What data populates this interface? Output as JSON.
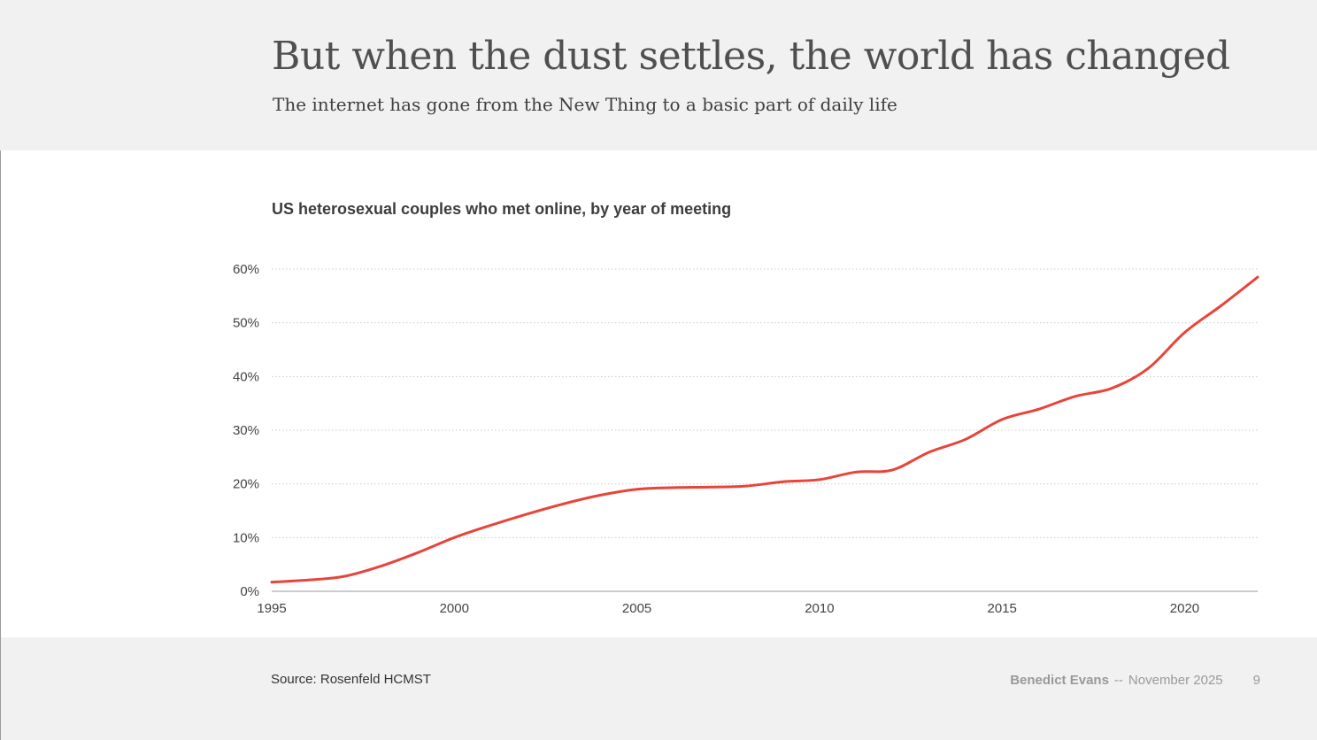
{
  "slide": {
    "title": "But when the dust settles, the world has changed",
    "subtitle": "The internet has gone from the New Thing to a basic part of daily life"
  },
  "footer": {
    "source": "Source: Rosenfeld HCMST",
    "author": "Benedict Evans",
    "separator": "--",
    "date": "November 2025",
    "page_number": "9"
  },
  "colors": {
    "line": "#e8443a",
    "grid": "#c9c9c9",
    "axis": "#9a9a9a",
    "text": "#444444"
  },
  "chart_data": {
    "type": "line",
    "title": "US heterosexual couples who met online, by year of meeting",
    "xlabel": "",
    "ylabel": "",
    "xlim": [
      1995,
      2022
    ],
    "ylim": [
      0,
      60
    ],
    "y_tick_values": [
      0,
      10,
      20,
      30,
      40,
      50,
      60
    ],
    "y_tick_labels": [
      "0%",
      "10%",
      "20%",
      "30%",
      "40%",
      "50%",
      "60%"
    ],
    "x_tick_values": [
      1995,
      2000,
      2005,
      2010,
      2015,
      2020
    ],
    "x_tick_labels": [
      "1995",
      "2000",
      "2005",
      "2010",
      "2015",
      "2020"
    ],
    "grid": "horizontal dotted",
    "series": [
      {
        "x": [
          1995,
          1996,
          1997,
          1998,
          1999,
          2000,
          2001,
          2002,
          2003,
          2004,
          2005,
          2006,
          2007,
          2008,
          2009,
          2010,
          2011,
          2012,
          2013,
          2014,
          2015,
          2016,
          2017,
          2018,
          2019,
          2020,
          2021,
          2022
        ],
        "values": [
          1.7,
          2.1,
          2.8,
          4.7,
          7.2,
          10.0,
          12.3,
          14.4,
          16.3,
          17.9,
          19.0,
          19.3,
          19.4,
          19.6,
          20.4,
          20.8,
          22.2,
          22.6,
          25.9,
          28.3,
          32.0,
          33.9,
          36.3,
          37.8,
          41.5,
          48.2,
          53.2,
          58.5
        ]
      }
    ]
  }
}
